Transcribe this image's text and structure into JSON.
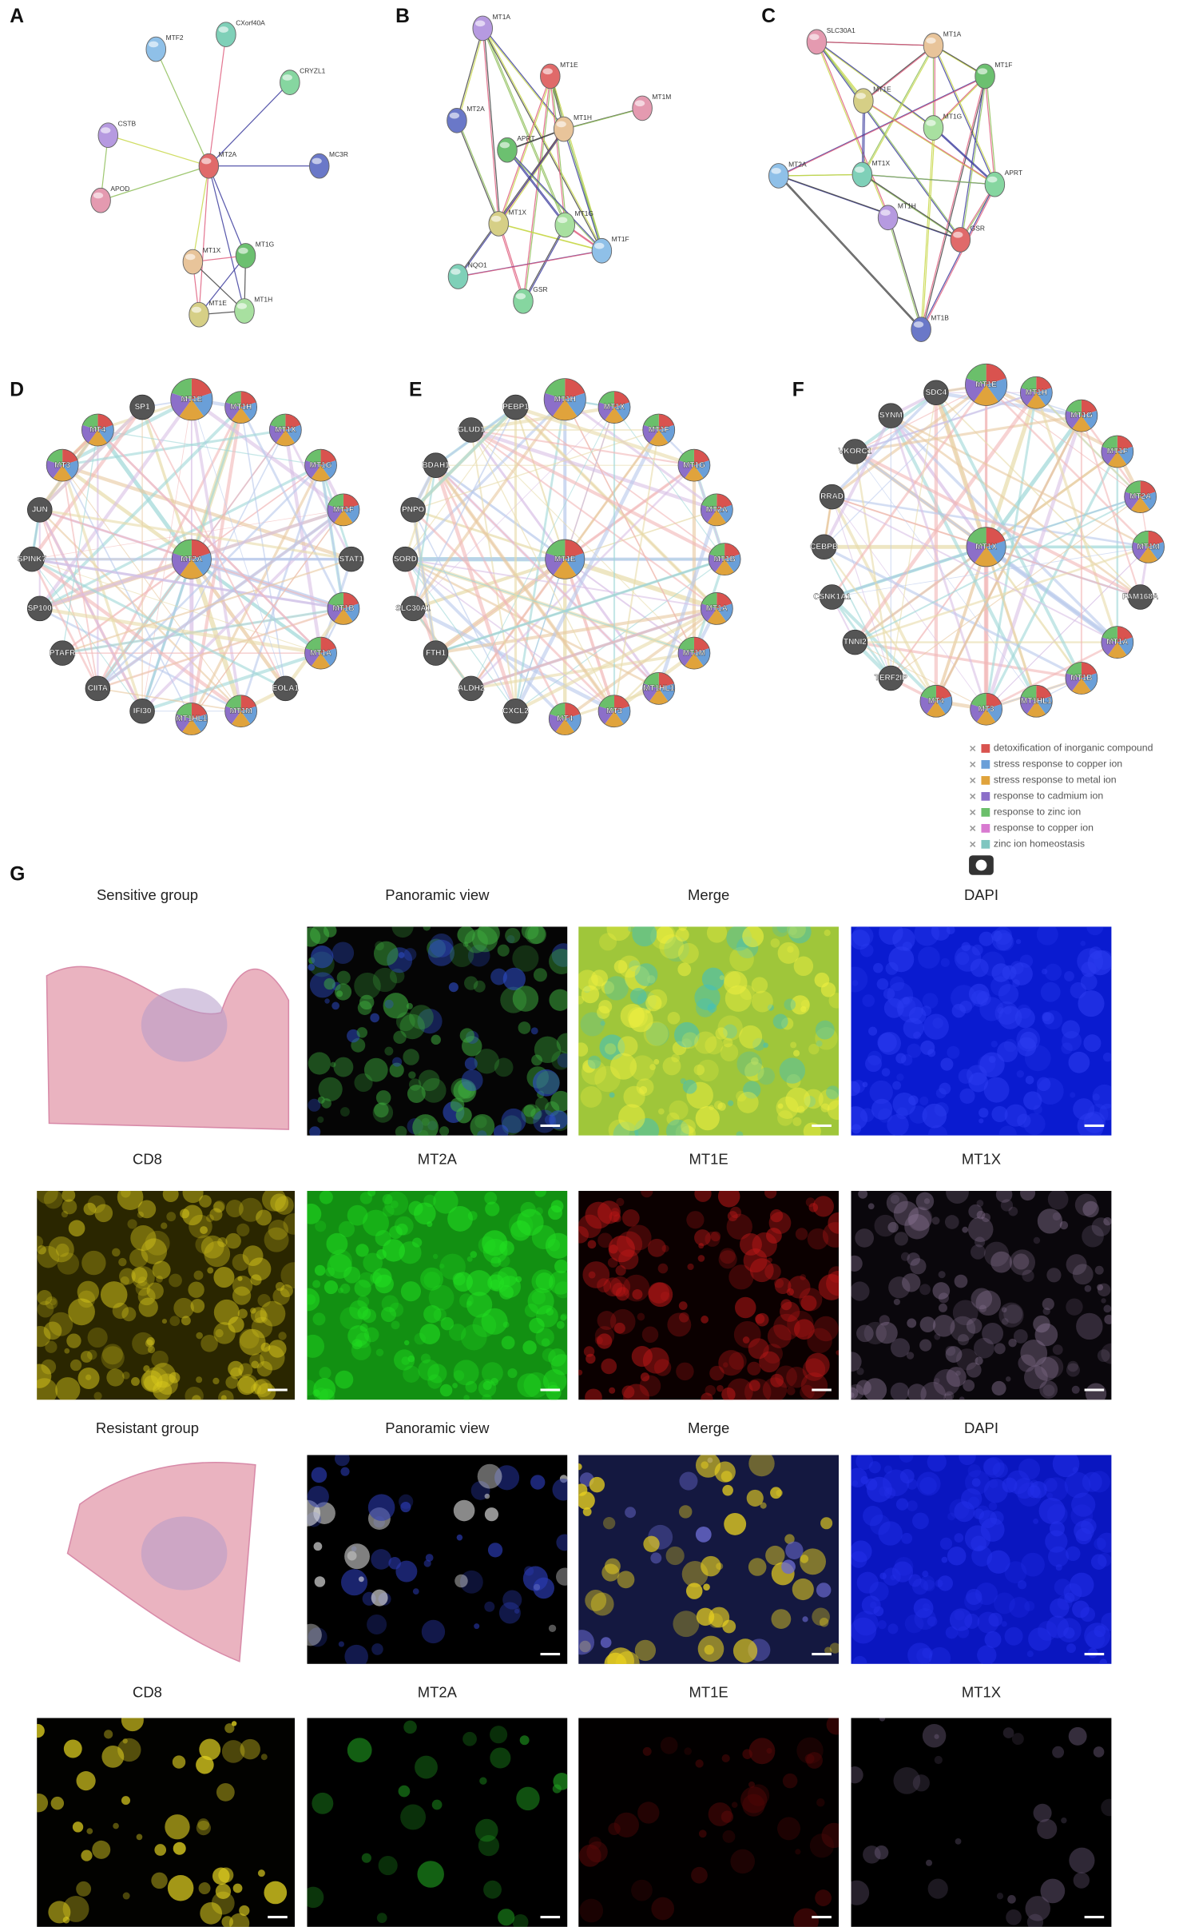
{
  "panels": [
    {
      "letter": "A",
      "nodes": [
        "MTF2",
        "CXorf40A",
        "CRYZL1",
        "CSTB",
        "MT2A",
        "MC3R",
        "APOD",
        "MT1X",
        "MT1G",
        "MT1E",
        "MT1H"
      ]
    },
    {
      "letter": "B",
      "nodes": [
        "MT1A",
        "MT1E",
        "MT2A",
        "MT1M",
        "MT1H",
        "APRT",
        "MT1X",
        "MT1G",
        "MT1F",
        "NQO1",
        "GSR"
      ]
    },
    {
      "letter": "C",
      "nodes": [
        "SLC30A1",
        "MT1A",
        "MT1F",
        "MT1E",
        "MT1G",
        "MT2A",
        "MT1X",
        "APRT",
        "MT1H",
        "GSR",
        "MT1B"
      ]
    },
    {
      "letter": "D",
      "center": "MT2A",
      "nodes": [
        "MT1E",
        "MT1H",
        "MT1X",
        "MT1G",
        "MT1F",
        "STAT1",
        "MT1B",
        "MT1A",
        "EOLA1",
        "MT1M",
        "MT1HL1",
        "IFI30",
        "CIITA",
        "PTAFR",
        "SP100",
        "SPINK7",
        "JUN",
        "MT3",
        "MT4",
        "SP1"
      ]
    },
    {
      "letter": "E",
      "center": "MT1E",
      "nodes": [
        "MT1H",
        "MT1X",
        "MT1F",
        "MT1G",
        "MT2A",
        "MT1B",
        "MT1A",
        "MT1M",
        "MT1HL1",
        "MT3",
        "MT4",
        "CXCL2",
        "ALDH2",
        "FTH1",
        "SLC30A1",
        "SORD",
        "PNPO",
        "BDAH1",
        "GLUD1",
        "PEBP1"
      ]
    },
    {
      "letter": "F",
      "center": "MT1X",
      "nodes": [
        "MT1E",
        "MT1H",
        "MT1G",
        "MT1F",
        "MT2A",
        "MT1M",
        "FAM168A",
        "MT1A",
        "MT1B",
        "MT1HL1",
        "MT3",
        "MT4",
        "TERF2IP",
        "TNNI2",
        "CSNK1A1",
        "CEBPB",
        "RRAD",
        "VKORC1",
        "SYNM",
        "SDC4"
      ]
    }
  ],
  "legend": [
    "detoxification of inorganic compound",
    "stress response to copper ion",
    "stress response to metal ion",
    "response to cadmium ion",
    "response to zinc ion",
    "response to copper ion",
    "zinc ion homeostasis"
  ],
  "panel_g": {
    "letter": "G",
    "captions": [
      [
        "Sensitive group",
        "Panoramic view",
        "Merge",
        "DAPI"
      ],
      [
        "CD8",
        "MT2A",
        "MT1E",
        "MT1X"
      ],
      [
        "Resistant group",
        "Panoramic view",
        "Merge",
        "DAPI"
      ],
      [
        "CD8",
        "MT2A",
        "MT1E",
        "MT1X"
      ]
    ]
  }
}
